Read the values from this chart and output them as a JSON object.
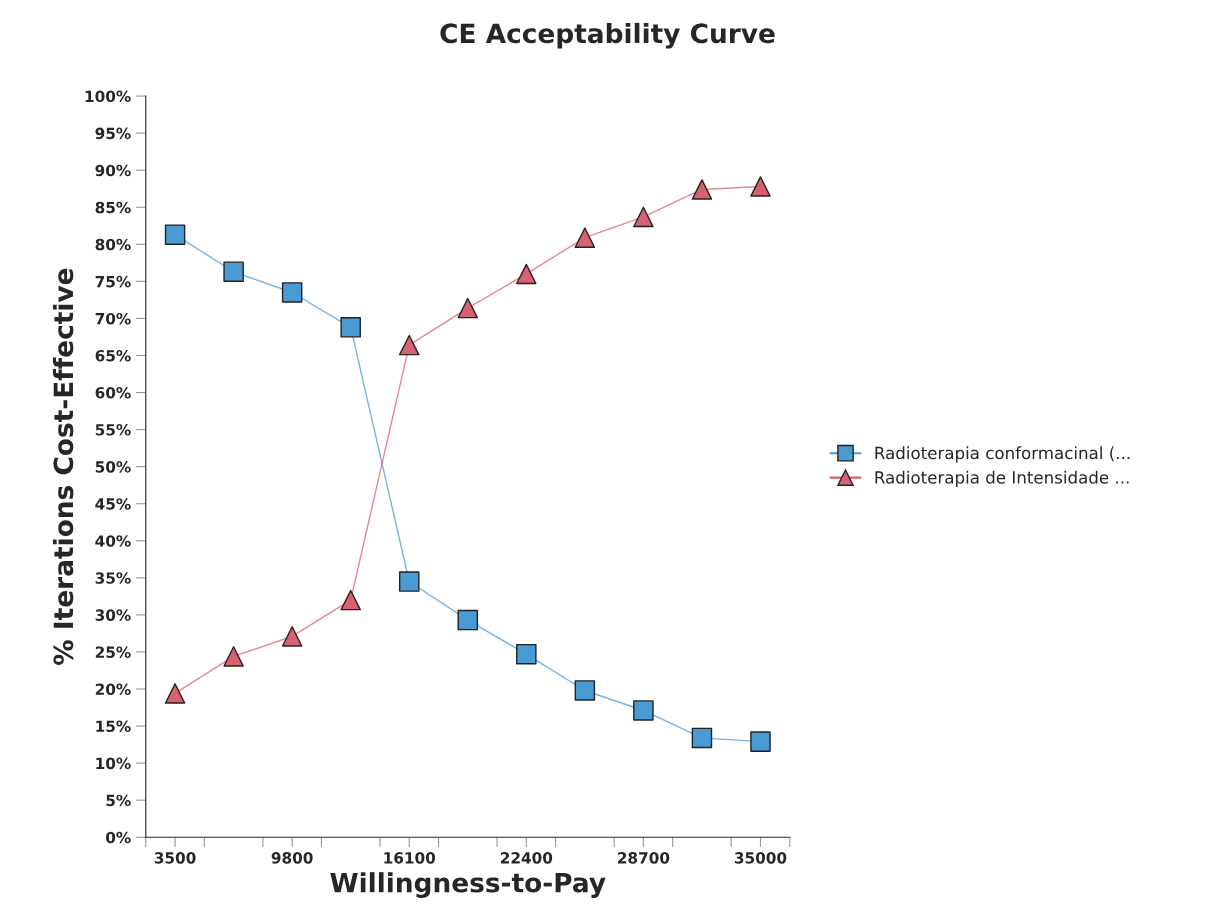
{
  "chart_data": {
    "type": "line",
    "title": "CE Acceptability Curve",
    "xlabel": "Willingness-to-Pay",
    "ylabel": "% Iterations Cost-Effective",
    "x": [
      3500,
      6650,
      9800,
      12950,
      16100,
      19250,
      22400,
      25550,
      28700,
      31850,
      35000
    ],
    "series": [
      {
        "name": "Radioterapia conformacinal (...",
        "color": "#4a9ad4",
        "marker": "square",
        "values": [
          81.3,
          76.3,
          73.5,
          68.8,
          34.5,
          29.3,
          24.7,
          19.8,
          17.1,
          13.4,
          12.9
        ]
      },
      {
        "name": "Radioterapia de Intensidade ...",
        "color": "#d9606e",
        "marker": "triangle",
        "values": [
          19.4,
          24.4,
          27.1,
          32.0,
          66.4,
          71.4,
          76.0,
          80.9,
          83.7,
          87.4,
          87.8
        ]
      }
    ],
    "xlim": [
      1925,
      36575
    ],
    "xticks": [
      {
        "value": 1925,
        "label": null
      },
      {
        "value": 3500,
        "label": "3500"
      },
      {
        "value": 5075,
        "label": null
      },
      {
        "value": 8225,
        "label": null
      },
      {
        "value": 9800,
        "label": "9800"
      },
      {
        "value": 11375,
        "label": null
      },
      {
        "value": 14525,
        "label": null
      },
      {
        "value": 16100,
        "label": "16100"
      },
      {
        "value": 17675,
        "label": null
      },
      {
        "value": 20825,
        "label": null
      },
      {
        "value": 22400,
        "label": "22400"
      },
      {
        "value": 23975,
        "label": null
      },
      {
        "value": 27125,
        "label": null
      },
      {
        "value": 28700,
        "label": "28700"
      },
      {
        "value": 30275,
        "label": null
      },
      {
        "value": 33425,
        "label": null
      },
      {
        "value": 35000,
        "label": "35000"
      },
      {
        "value": 36575,
        "label": null
      }
    ],
    "ylim": [
      0,
      100
    ],
    "yticks": [
      {
        "value": 0,
        "label": "0%"
      },
      {
        "value": 5,
        "label": "5%"
      },
      {
        "value": 10,
        "label": "10%"
      },
      {
        "value": 15,
        "label": "15%"
      },
      {
        "value": 20,
        "label": "20%"
      },
      {
        "value": 25,
        "label": "25%"
      },
      {
        "value": 30,
        "label": "30%"
      },
      {
        "value": 35,
        "label": "35%"
      },
      {
        "value": 40,
        "label": "40%"
      },
      {
        "value": 45,
        "label": "45%"
      },
      {
        "value": 50,
        "label": "50%"
      },
      {
        "value": 55,
        "label": "55%"
      },
      {
        "value": 60,
        "label": "60%"
      },
      {
        "value": 65,
        "label": "65%"
      },
      {
        "value": 70,
        "label": "70%"
      },
      {
        "value": 75,
        "label": "75%"
      },
      {
        "value": 80,
        "label": "80%"
      },
      {
        "value": 85,
        "label": "85%"
      },
      {
        "value": 90,
        "label": "90%"
      },
      {
        "value": 95,
        "label": "95%"
      },
      {
        "value": 100,
        "label": "100%"
      }
    ],
    "grid": false,
    "legend": "right"
  }
}
